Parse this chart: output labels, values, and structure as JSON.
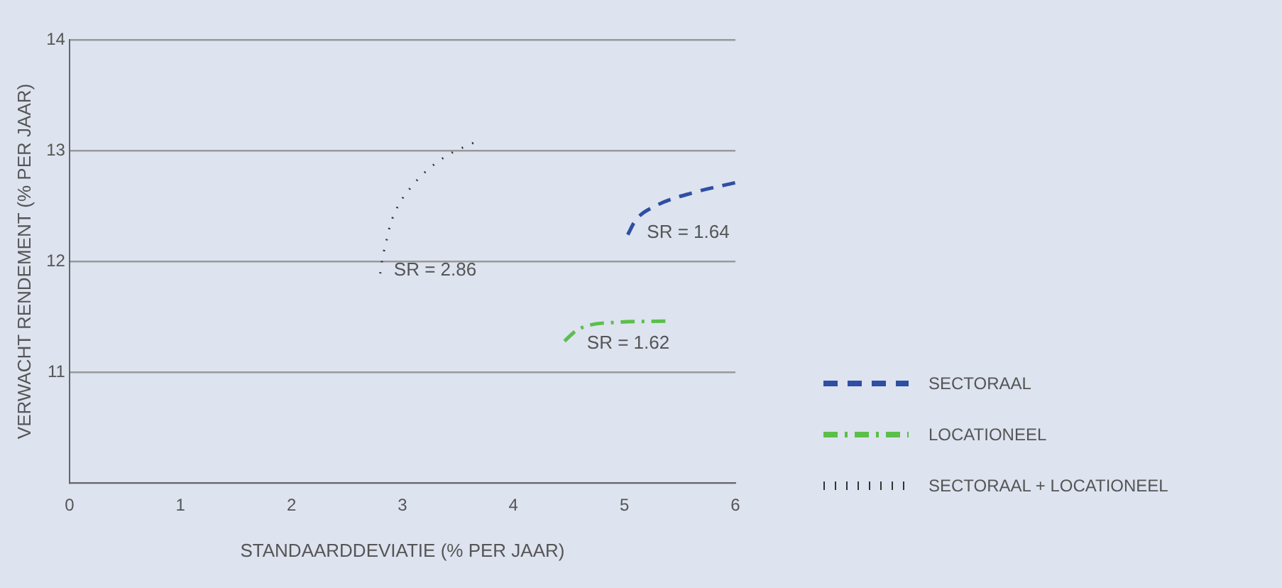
{
  "chart_data": {
    "type": "line",
    "xlabel": "STANDAARDDEVIATIE (% PER JAAR)",
    "ylabel": "VERWACHT RENDEMENT (% PER JAAR)",
    "xlim": [
      0,
      6
    ],
    "xticks": [
      0,
      1,
      2,
      3,
      4,
      5,
      6
    ],
    "ylim": [
      10,
      14
    ],
    "yticks": [
      {
        "value": 10,
        "label": null
      },
      11,
      12,
      13,
      14
    ],
    "grid": "y",
    "legend": "right",
    "marker": "none",
    "series": [
      {
        "name": "SECTORAAL",
        "color": "#2e4fa3",
        "line_style": "dashed",
        "x": [
          5.03,
          5.1,
          5.28,
          5.62,
          6.0
        ],
        "values": [
          12.24,
          12.37,
          12.5,
          12.62,
          12.71
        ]
      },
      {
        "name": "LOCATIONEEL",
        "color": "#5bbf4a",
        "line_style": "dashdot",
        "x": [
          4.46,
          4.56,
          4.67,
          4.94,
          5.37
        ],
        "values": [
          11.28,
          11.37,
          11.42,
          11.45,
          11.46
        ]
      },
      {
        "name": "SECTORAAL + LOCATIONEEL",
        "color": "#333333",
        "line_style": "dotted",
        "x": [
          2.8,
          2.82,
          2.85,
          2.89,
          2.96,
          3.07,
          3.22,
          3.41,
          3.64
        ],
        "values": [
          11.89,
          12.03,
          12.16,
          12.33,
          12.5,
          12.66,
          12.82,
          12.96,
          13.07
        ]
      }
    ],
    "annotations": [
      "SR = 1.64",
      "SR = 1.62",
      "SR = 2.86"
    ]
  }
}
